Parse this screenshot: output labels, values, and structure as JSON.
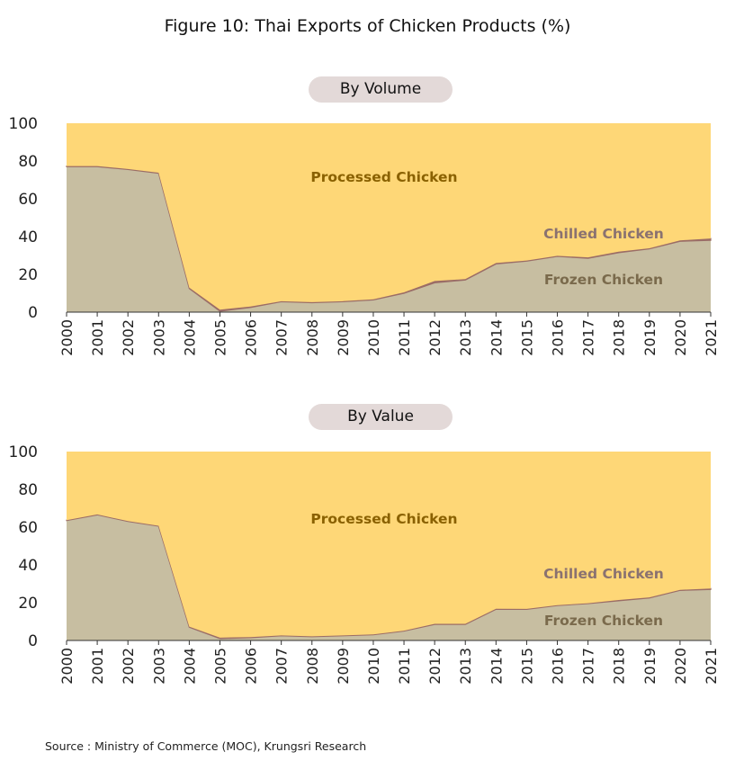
{
  "title": "Figure 10: Thai Exports of Chicken Products (%)",
  "source": "Source : Ministry of Commerce (MOC), Krungsri Research",
  "colors": {
    "processed": "#fed777",
    "frozen": "#c7bea1",
    "chilled": "#9b6d66",
    "processed_label": "#8a6100",
    "chilled_label": "#8a7270",
    "frozen_label": "#7a6a4c"
  },
  "chart_data": [
    {
      "type": "area",
      "title": "By Volume",
      "x": [
        "2000",
        "2001",
        "2002",
        "2003",
        "2004",
        "2005",
        "2006",
        "2007",
        "2008",
        "2009",
        "2010",
        "2011",
        "2012",
        "2013",
        "2014",
        "2015",
        "2016",
        "2017",
        "2018",
        "2019",
        "2020",
        "2021"
      ],
      "ylim": [
        0,
        100
      ],
      "yticks": [
        0,
        20,
        40,
        60,
        80,
        100
      ],
      "stacked": true,
      "series": [
        {
          "name": "Frozen Chicken",
          "values": [
            77,
            77,
            75.5,
            73.5,
            12.5,
            0.5,
            2.5,
            5.5,
            5,
            5.5,
            6.5,
            10,
            15.5,
            17,
            25.5,
            27,
            29.5,
            28.5,
            31.5,
            33.5,
            37.5,
            38
          ]
        },
        {
          "name": "Chilled Chicken",
          "values": [
            0.3,
            0.3,
            0.3,
            0.3,
            0.5,
            0.8,
            0.5,
            0.3,
            0.3,
            0.3,
            0.3,
            0.5,
            1,
            0.5,
            0.5,
            0.3,
            0.3,
            0.5,
            0.5,
            0.3,
            0.5,
            1
          ]
        },
        {
          "name": "Processed Chicken",
          "values": [
            22.7,
            22.7,
            24.2,
            26.2,
            87,
            98.7,
            97,
            94.2,
            94.7,
            94.2,
            93.2,
            89.5,
            83.5,
            82.5,
            74,
            72.7,
            70.2,
            71,
            68,
            66.2,
            62,
            61
          ]
        }
      ],
      "legend_placement": "inline"
    },
    {
      "type": "area",
      "title": "By Value",
      "x": [
        "2000",
        "2001",
        "2002",
        "2003",
        "2004",
        "2005",
        "2006",
        "2007",
        "2008",
        "2009",
        "2010",
        "2011",
        "2012",
        "2013",
        "2014",
        "2015",
        "2016",
        "2017",
        "2018",
        "2019",
        "2020",
        "2021"
      ],
      "ylim": [
        0,
        100
      ],
      "yticks": [
        0,
        20,
        40,
        60,
        80,
        100
      ],
      "stacked": true,
      "series": [
        {
          "name": "Frozen Chicken",
          "values": [
            63.5,
            66.5,
            63,
            60.5,
            7,
            1,
            1.5,
            2.5,
            2,
            2.5,
            3,
            5,
            8.5,
            8.5,
            16.5,
            16.5,
            18.5,
            19.5,
            21,
            22.5,
            26.5,
            27
          ]
        },
        {
          "name": "Chilled Chicken",
          "values": [
            0.2,
            0.2,
            0.2,
            0.2,
            0.3,
            0.5,
            0.3,
            0.2,
            0.2,
            0.2,
            0.2,
            0.2,
            0.3,
            0.3,
            0.3,
            0.2,
            0.2,
            0.2,
            0.4,
            0.3,
            0.3,
            0.5
          ]
        },
        {
          "name": "Processed Chicken",
          "values": [
            36.3,
            33.3,
            36.8,
            39.3,
            92.7,
            98.5,
            98.2,
            97.3,
            97.8,
            97.3,
            96.8,
            94.8,
            91.2,
            91.2,
            83.2,
            83.3,
            81.3,
            80.3,
            78.6,
            77.2,
            73.2,
            72.5
          ]
        }
      ],
      "legend_placement": "inline"
    }
  ]
}
